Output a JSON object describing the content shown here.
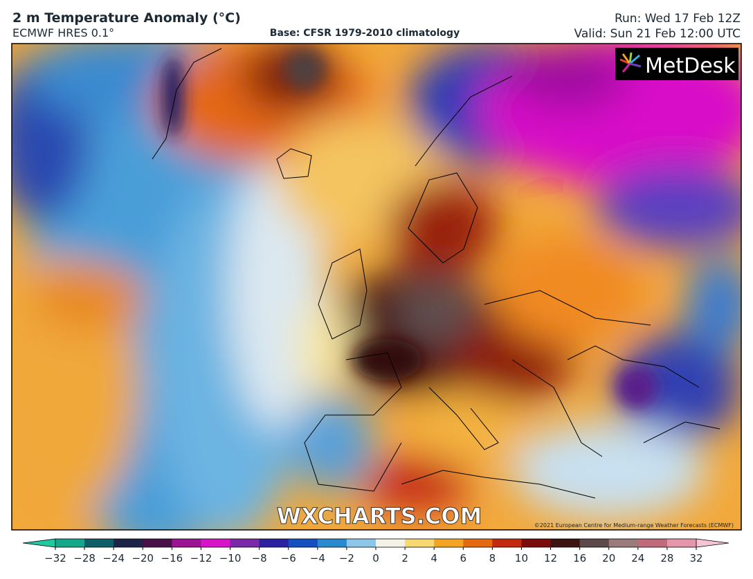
{
  "header": {
    "title": "2 m Temperature Anomaly (°C)",
    "model": "ECMWF HRES 0.1°",
    "base": "Base: CFSR 1979-2010 climatology",
    "run": "Run: Wed 17 Feb 12Z",
    "valid": "Valid: Sun 21 Feb 12:00 UTC"
  },
  "map": {
    "logo": "MetDesk",
    "watermark": "WXCHARTS.COM",
    "copyright": "©2021 European Centre for Medium-range Weather Forecasts (ECMWF)"
  },
  "colorbar": {
    "ticks": [
      {
        "value": -32,
        "label": "−32"
      },
      {
        "value": -28,
        "label": "−28"
      },
      {
        "value": -24,
        "label": "−24"
      },
      {
        "value": -20,
        "label": "−20"
      },
      {
        "value": -16,
        "label": "−16"
      },
      {
        "value": -12,
        "label": "−12"
      },
      {
        "value": -10,
        "label": "−10"
      },
      {
        "value": -8,
        "label": "−8"
      },
      {
        "value": -6,
        "label": "−6"
      },
      {
        "value": -4,
        "label": "−4"
      },
      {
        "value": -2,
        "label": "−2"
      },
      0,
      2,
      4,
      6,
      8,
      10,
      12,
      16,
      20,
      24,
      28,
      32
    ],
    "colors": [
      "#14a88a",
      "#0c5f66",
      "#1c2448",
      "#4a1048",
      "#9a1494",
      "#d814c8",
      "#7a2aa8",
      "#2a20a0",
      "#1450c0",
      "#2a8ad0",
      "#8ec6ea",
      "#f4f2e6",
      "#f8d870",
      "#f2a422",
      "#e46a12",
      "#c42a10",
      "#7a0c0c",
      "#3c1412",
      "#5c4a4a",
      "#9a7a7a",
      "#c06a7a",
      "#e496aa"
    ],
    "under_color": "#20c8a0",
    "over_color": "#f4c4d4"
  }
}
